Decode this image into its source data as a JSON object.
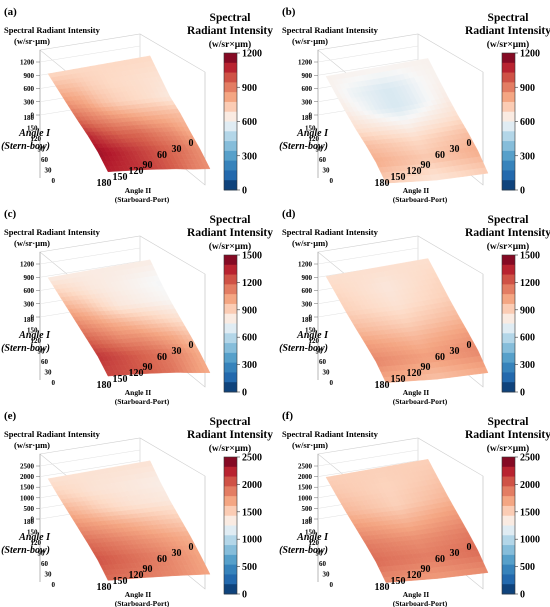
{
  "figure": {
    "common": {
      "z_axis_title_line1": "Spectral Radiant Intensity",
      "z_axis_title_line2": "(w/sr·μm)",
      "colorbar_title_line1": "Spectral",
      "colorbar_title_line2": "Radiant Intensity",
      "colorbar_unit": "(w/sr×μm)",
      "angle1_line1": "Angle I",
      "angle1_line2": "(Stern-bow)",
      "angle2_line1": "Angle II",
      "angle2_line2": "(Starboard-Port)",
      "angle1_ticks": [
        "0",
        "30",
        "60",
        "90",
        "120",
        "150",
        "180"
      ],
      "angle2_ticks": [
        "180",
        "150",
        "120",
        "90",
        "60",
        "30",
        "0"
      ],
      "colors": {
        "low": "#053061",
        "mid": "#f7f7f7",
        "high": "#67001f"
      }
    }
  },
  "chart_data": [
    {
      "type": "heatmap",
      "panel": "(a)",
      "surface": "3d",
      "z_ticks": [
        "1200",
        "900",
        "600",
        "300",
        "0"
      ],
      "colorbar_ticks": [
        "1200",
        "900",
        "600",
        "300",
        "0"
      ],
      "zlim": [
        0,
        1200
      ],
      "x": [
        0,
        30,
        60,
        90,
        120,
        150,
        180
      ],
      "y": [
        0,
        30,
        60,
        90,
        120,
        150,
        180
      ],
      "z": [
        [
          700,
          700,
          700,
          700,
          700,
          700,
          700
        ],
        [
          780,
          760,
          720,
          700,
          690,
          680,
          670
        ],
        [
          860,
          820,
          760,
          720,
          700,
          680,
          650
        ],
        [
          950,
          900,
          860,
          830,
          800,
          780,
          760
        ],
        [
          1060,
          1000,
          960,
          940,
          900,
          860,
          800
        ],
        [
          1120,
          1080,
          1040,
          1000,
          960,
          920,
          860
        ],
        [
          1080,
          1060,
          1040,
          1000,
          960,
          900,
          860
        ]
      ]
    },
    {
      "type": "heatmap",
      "panel": "(b)",
      "surface": "3d",
      "z_ticks": [
        "1200",
        "900",
        "600",
        "300",
        "0"
      ],
      "colorbar_ticks": [
        "1200",
        "900",
        "600",
        "300",
        "0"
      ],
      "zlim": [
        0,
        1200
      ],
      "x": [
        0,
        30,
        60,
        90,
        120,
        150,
        180
      ],
      "y": [
        0,
        30,
        60,
        90,
        120,
        150,
        180
      ],
      "z": [
        [
          620,
          620,
          620,
          620,
          620,
          620,
          620
        ],
        [
          620,
          580,
          560,
          540,
          560,
          600,
          620
        ],
        [
          640,
          600,
          560,
          540,
          560,
          600,
          640
        ],
        [
          680,
          660,
          640,
          620,
          640,
          660,
          680
        ],
        [
          760,
          740,
          720,
          700,
          720,
          740,
          760
        ],
        [
          800,
          780,
          760,
          740,
          760,
          780,
          800
        ],
        [
          720,
          700,
          680,
          660,
          680,
          700,
          720
        ]
      ]
    },
    {
      "type": "heatmap",
      "panel": "(c)",
      "surface": "3d",
      "z_ticks": [
        "1200",
        "900",
        "600",
        "300",
        "0"
      ],
      "colorbar_ticks": [
        "1500",
        "1200",
        "900",
        "600",
        "300",
        "0"
      ],
      "zlim": [
        0,
        1500
      ],
      "x": [
        0,
        30,
        60,
        90,
        120,
        150,
        180
      ],
      "y": [
        0,
        30,
        60,
        90,
        120,
        150,
        180
      ],
      "z": [
        [
          800,
          800,
          800,
          800,
          800,
          800,
          800
        ],
        [
          900,
          860,
          820,
          800,
          780,
          760,
          740
        ],
        [
          1000,
          950,
          880,
          820,
          800,
          780,
          760
        ],
        [
          1100,
          1050,
          1000,
          960,
          920,
          880,
          840
        ],
        [
          1200,
          1150,
          1100,
          1080,
          1040,
          1000,
          940
        ],
        [
          1300,
          1260,
          1220,
          1180,
          1140,
          1080,
          1000
        ],
        [
          1260,
          1240,
          1220,
          1180,
          1140,
          1060,
          1000
        ]
      ]
    },
    {
      "type": "heatmap",
      "panel": "(d)",
      "surface": "3d",
      "z_ticks": [
        "1200",
        "900",
        "600",
        "300",
        "0"
      ],
      "colorbar_ticks": [
        "1500",
        "1200",
        "900",
        "600",
        "300",
        "0"
      ],
      "zlim": [
        0,
        1500
      ],
      "x": [
        0,
        30,
        60,
        90,
        120,
        150,
        180
      ],
      "y": [
        0,
        30,
        60,
        90,
        120,
        150,
        180
      ],
      "z": [
        [
          850,
          850,
          850,
          850,
          850,
          850,
          850
        ],
        [
          880,
          860,
          840,
          820,
          840,
          860,
          880
        ],
        [
          900,
          880,
          860,
          840,
          860,
          880,
          900
        ],
        [
          960,
          940,
          920,
          900,
          920,
          940,
          960
        ],
        [
          1040,
          1020,
          1000,
          980,
          1000,
          1020,
          1040
        ],
        [
          1100,
          1080,
          1060,
          1040,
          1060,
          1080,
          1100
        ],
        [
          1000,
          980,
          960,
          940,
          960,
          980,
          1000
        ]
      ]
    },
    {
      "type": "heatmap",
      "panel": "(e)",
      "surface": "3d",
      "z_ticks": [
        "2500",
        "2000",
        "1500",
        "1000",
        "500",
        "0"
      ],
      "colorbar_ticks": [
        "2500",
        "2000",
        "1500",
        "1000",
        "500",
        "0"
      ],
      "zlim": [
        0,
        2500
      ],
      "x": [
        0,
        30,
        60,
        90,
        120,
        150,
        180
      ],
      "y": [
        0,
        30,
        60,
        90,
        120,
        150,
        180
      ],
      "z": [
        [
          1400,
          1400,
          1400,
          1400,
          1400,
          1400,
          1400
        ],
        [
          1500,
          1450,
          1400,
          1380,
          1360,
          1340,
          1320
        ],
        [
          1650,
          1580,
          1500,
          1440,
          1400,
          1380,
          1360
        ],
        [
          1800,
          1750,
          1700,
          1650,
          1600,
          1550,
          1500
        ],
        [
          1950,
          1900,
          1850,
          1800,
          1750,
          1700,
          1650
        ],
        [
          2050,
          2000,
          1950,
          1900,
          1850,
          1780,
          1700
        ],
        [
          1950,
          1920,
          1900,
          1860,
          1820,
          1760,
          1700
        ]
      ]
    },
    {
      "type": "heatmap",
      "panel": "(f)",
      "surface": "3d",
      "z_ticks": [
        "2500",
        "2000",
        "1500",
        "1000",
        "500",
        "0"
      ],
      "colorbar_ticks": [
        "2500",
        "2000",
        "1500",
        "1000",
        "500",
        "0"
      ],
      "zlim": [
        0,
        2500
      ],
      "x": [
        0,
        30,
        60,
        90,
        120,
        150,
        180
      ],
      "y": [
        0,
        30,
        60,
        90,
        120,
        150,
        180
      ],
      "z": [
        [
          1500,
          1500,
          1500,
          1500,
          1500,
          1500,
          1500
        ],
        [
          1550,
          1520,
          1500,
          1480,
          1500,
          1520,
          1550
        ],
        [
          1620,
          1580,
          1540,
          1500,
          1540,
          1580,
          1620
        ],
        [
          1750,
          1720,
          1680,
          1650,
          1680,
          1720,
          1750
        ],
        [
          1880,
          1850,
          1820,
          1800,
          1820,
          1850,
          1880
        ],
        [
          1950,
          1920,
          1900,
          1880,
          1900,
          1920,
          1950
        ],
        [
          1800,
          1780,
          1760,
          1740,
          1760,
          1780,
          1800
        ]
      ]
    }
  ]
}
